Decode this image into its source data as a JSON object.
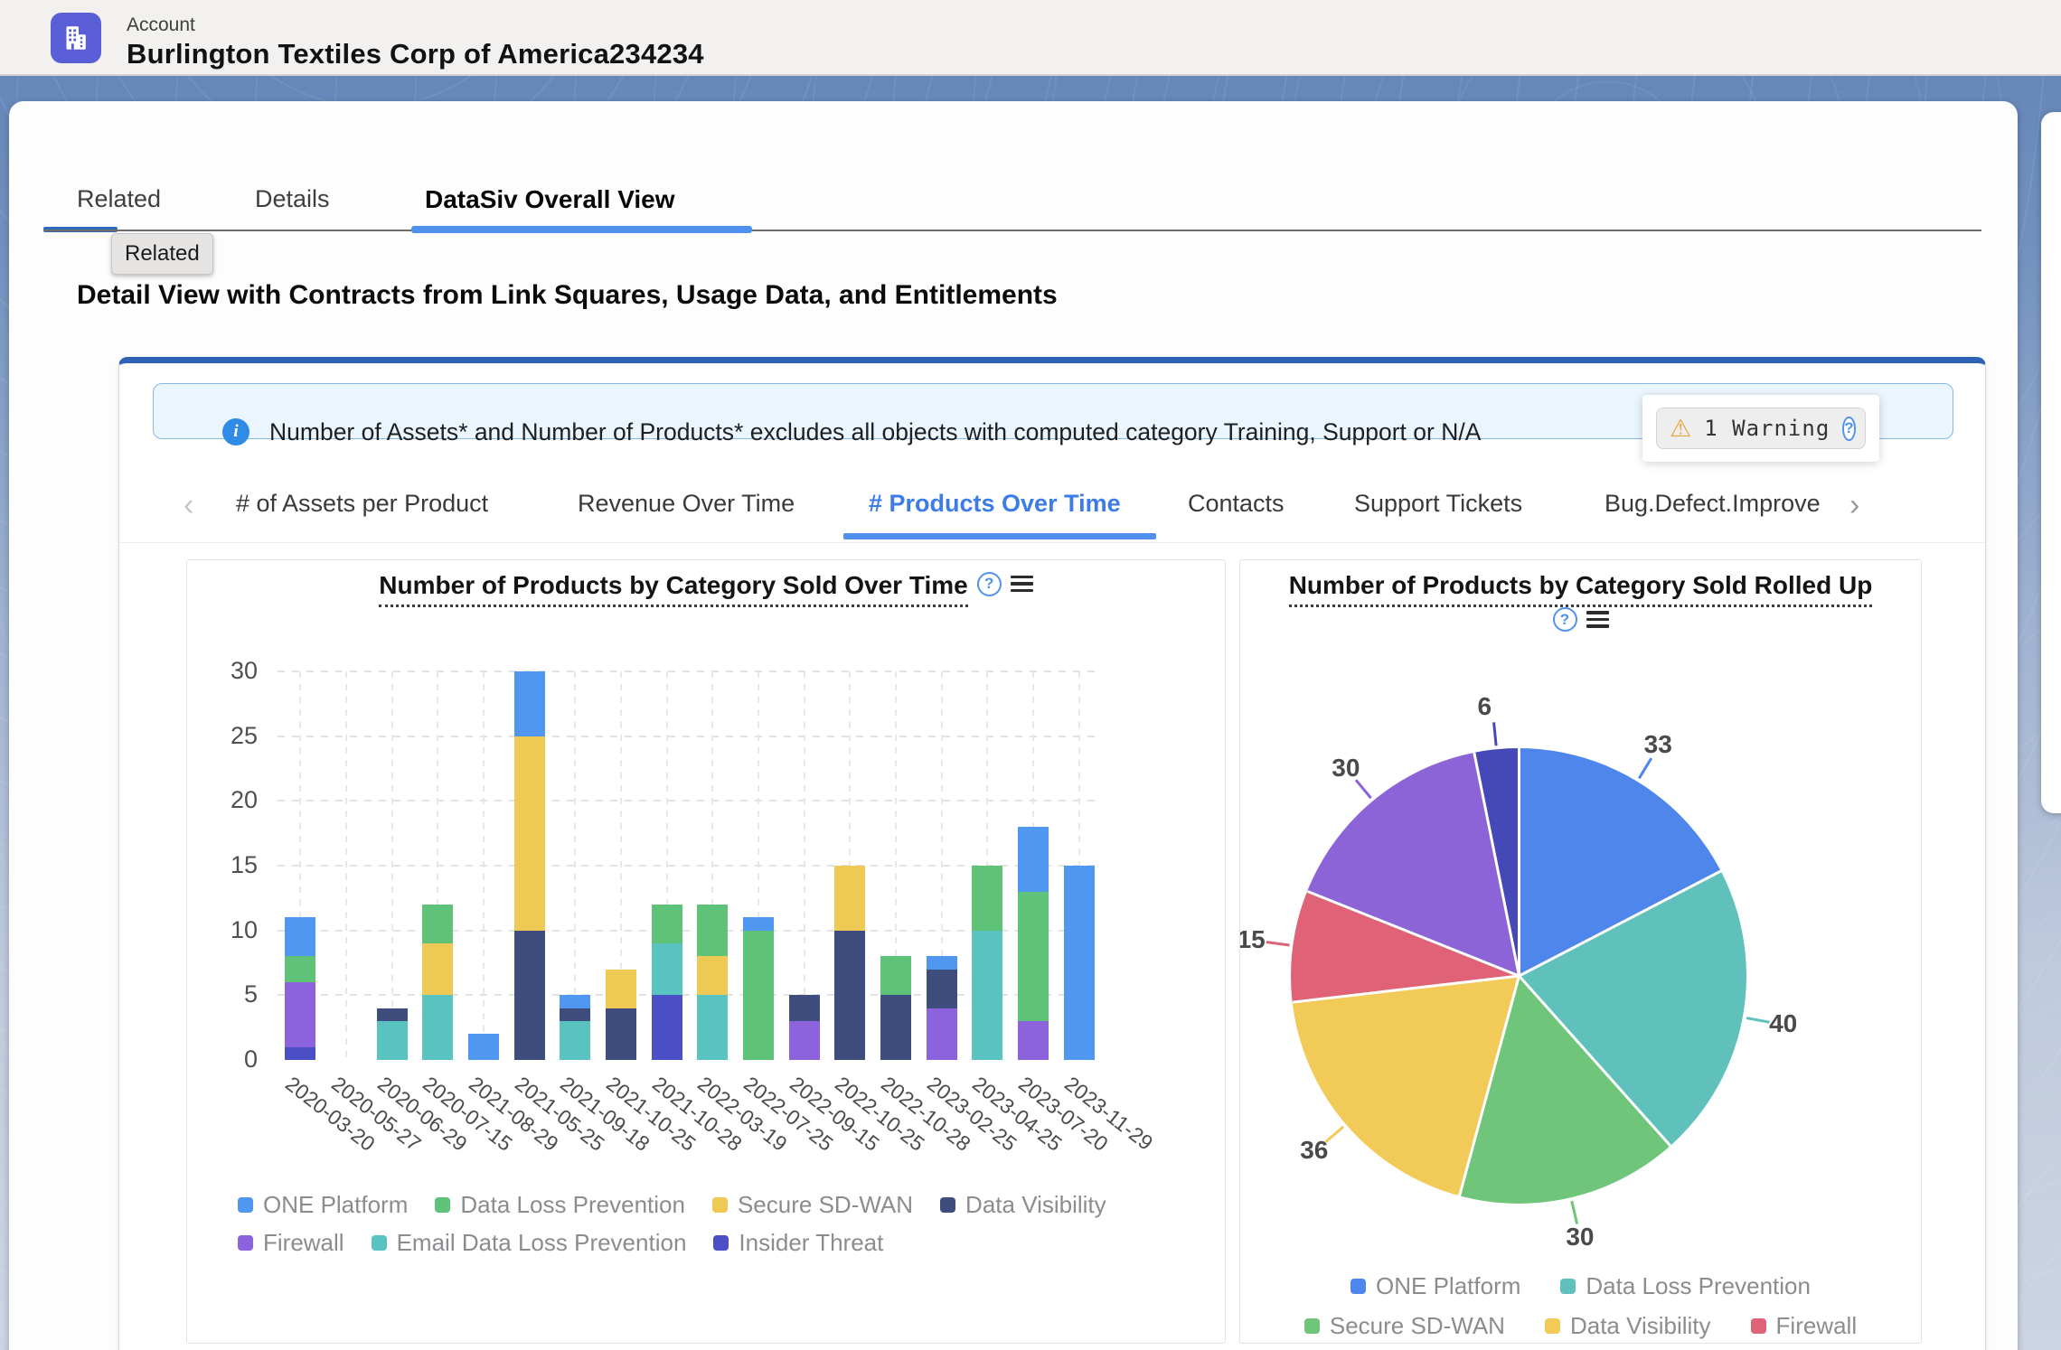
{
  "header": {
    "object_label": "Account",
    "title": "Burlington Textiles Corp of America234234"
  },
  "record_tabs": {
    "tabs": [
      {
        "label": "Related",
        "active": false
      },
      {
        "label": "Details",
        "active": false
      },
      {
        "label": "DataSiv Overall View",
        "active": true
      }
    ],
    "tooltip": "Related"
  },
  "section_heading": "Detail View with Contracts from Link Squares, Usage Data, and Entitlements",
  "info_banner": {
    "text": "Number of Assets* and Number of Products* excludes all objects with computed category Training, Support or N/A"
  },
  "warning_chip": {
    "label": "1 Warning"
  },
  "chart_tabs": {
    "tabs": [
      "# of Assets per Product",
      "Revenue Over Time",
      "# Products Over Time",
      "Contacts",
      "Support Tickets",
      "Bug.Defect.Improve"
    ],
    "active_index": 2
  },
  "colors": {
    "accent_blue": "#4f90ee",
    "panel_top_border": "#2d62b5",
    "info_blue": "#2f8be6",
    "warning_orange": "#e8a33d",
    "account_icon": "#5a5fd8"
  },
  "chart_data": [
    {
      "type": "bar",
      "stacked": true,
      "title": "Number of Products by Category Sold Over Time",
      "categories": [
        "2020-03-20",
        "2020-05-27",
        "2020-06-29",
        "2020-07-15",
        "2021-08-29",
        "2021-05-25",
        "2021-09-18",
        "2021-10-25",
        "2021-10-28",
        "2022-03-19",
        "2022-07-25",
        "2022-09-15",
        "2022-10-25",
        "2022-10-28",
        "2023-02-25",
        "2023-04-25",
        "2023-07-20",
        "2023-11-29"
      ],
      "series": [
        {
          "name": "ONE Platform",
          "color": "#4f97f0",
          "values": [
            3,
            0,
            0,
            0,
            2,
            5,
            1,
            0,
            0,
            0,
            1,
            0,
            0,
            0,
            1,
            0,
            5,
            15
          ]
        },
        {
          "name": "Data Loss Prevention",
          "color": "#5ec278",
          "values": [
            2,
            0,
            0,
            3,
            0,
            0,
            0,
            0,
            3,
            4,
            10,
            0,
            0,
            3,
            0,
            5,
            10,
            0
          ]
        },
        {
          "name": "Secure SD-WAN",
          "color": "#eeca54",
          "values": [
            0,
            0,
            0,
            4,
            0,
            15,
            0,
            3,
            0,
            3,
            0,
            0,
            5,
            0,
            0,
            0,
            0,
            0
          ]
        },
        {
          "name": "Data Visibility",
          "color": "#3e4d7d",
          "values": [
            0,
            0,
            1,
            0,
            0,
            10,
            1,
            4,
            0,
            0,
            0,
            2,
            10,
            5,
            3,
            0,
            0,
            0
          ]
        },
        {
          "name": "Firewall",
          "color": "#8c63dd",
          "values": [
            5,
            0,
            0,
            0,
            0,
            0,
            0,
            0,
            0,
            0,
            0,
            3,
            0,
            0,
            4,
            0,
            3,
            0
          ]
        },
        {
          "name": "Email Data Loss Prevention",
          "color": "#59c3c2",
          "values": [
            0,
            0,
            3,
            5,
            0,
            0,
            3,
            0,
            4,
            5,
            0,
            0,
            0,
            0,
            0,
            10,
            0,
            0
          ]
        },
        {
          "name": "Insider Threat",
          "color": "#4b50c6",
          "values": [
            1,
            0,
            0,
            0,
            0,
            0,
            0,
            0,
            5,
            0,
            0,
            0,
            0,
            0,
            0,
            0,
            0,
            0
          ]
        }
      ],
      "stack_order_bottom_to_top": [
        "Insider Threat",
        "Firewall",
        "Email Data Loss Prevention",
        "Data Visibility",
        "Secure SD-WAN",
        "Data Loss Prevention",
        "ONE Platform"
      ],
      "ylim": [
        0,
        30
      ],
      "yticks": [
        0,
        5,
        10,
        15,
        20,
        25,
        30
      ],
      "grid": "dashed",
      "legend_position": "bottom",
      "legend_rows": [
        4,
        3
      ]
    },
    {
      "type": "pie",
      "title": "Number of Products by Category Sold Rolled Up",
      "labels": [
        "ONE Platform",
        "Data Loss Prevention",
        "Secure SD-WAN",
        "Data Visibility",
        "Firewall",
        "Email Data Loss Prevention",
        "Insider Threat"
      ],
      "values": [
        33,
        40,
        30,
        36,
        15,
        30,
        6
      ],
      "colors": [
        "#4e86ec",
        "#60c1bc",
        "#6fc579",
        "#f2ca57",
        "#df6277",
        "#8d64d8",
        "#4449b7"
      ],
      "total": 190,
      "start_angle_deg": 0,
      "direction": "clockwise",
      "legend_position": "bottom",
      "legend_visible_labels": [
        "ONE Platform",
        "Data Loss Prevention",
        "Secure SD-WAN",
        "Data Visibility",
        "Firewall"
      ],
      "legend_rows": [
        2,
        3
      ]
    }
  ]
}
